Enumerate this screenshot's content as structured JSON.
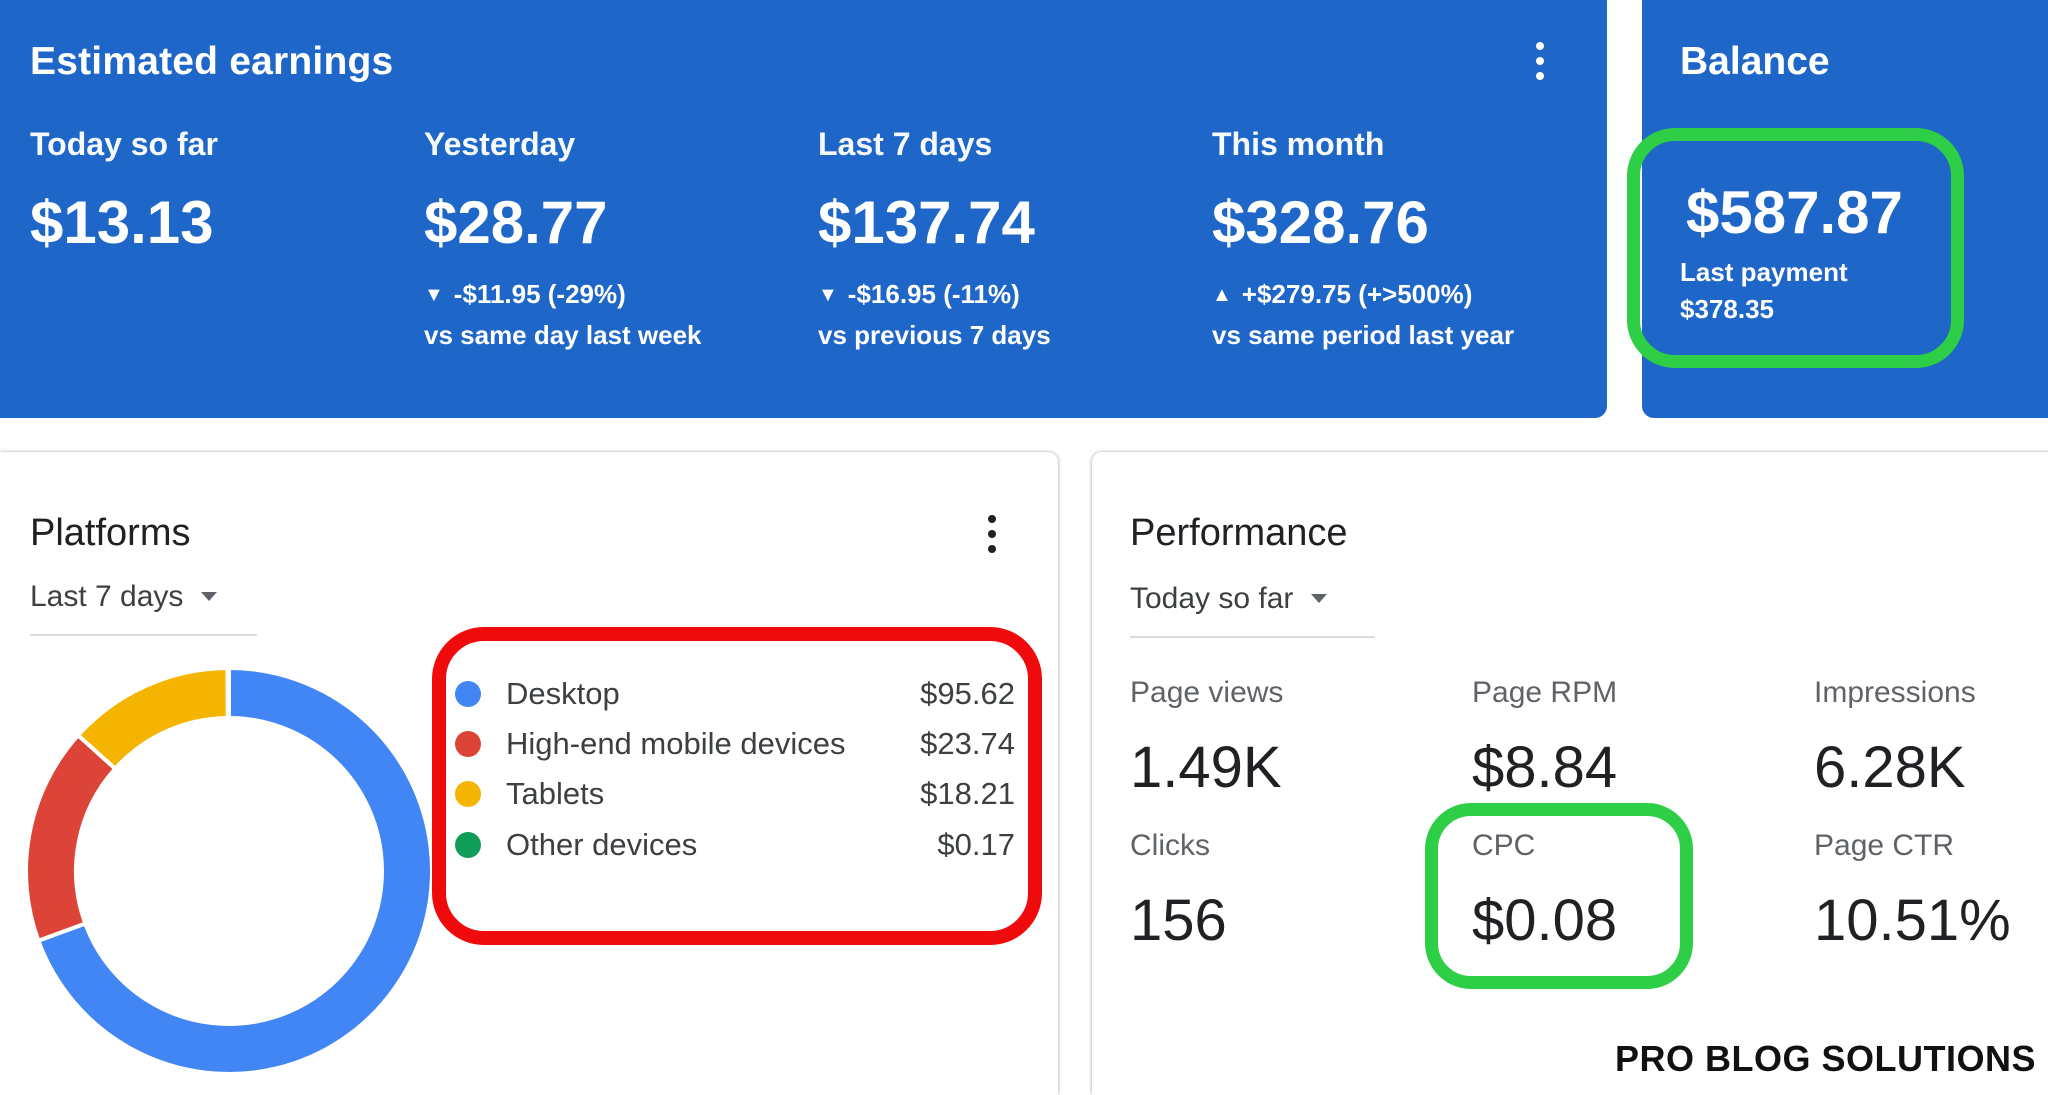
{
  "earnings": {
    "title": "Estimated earnings",
    "metrics": [
      {
        "label": "Today so far",
        "value": "$13.13",
        "change": "",
        "compare": ""
      },
      {
        "label": "Yesterday",
        "value": "$28.77",
        "change": "-$11.95 (-29%)",
        "direction": "down",
        "compare": "vs same day last week"
      },
      {
        "label": "Last 7 days",
        "value": "$137.74",
        "change": "-$16.95 (-11%)",
        "direction": "down",
        "compare": "vs previous 7 days"
      },
      {
        "label": "This month",
        "value": "$328.76",
        "change": "+$279.75 (+>500%)",
        "direction": "up",
        "compare": "vs same period last year"
      }
    ],
    "arrow_down": "▼",
    "arrow_up": "▲"
  },
  "balance": {
    "title": "Balance",
    "value": "$587.87",
    "last_payment_label": "Last payment",
    "last_payment_value": "$378.35"
  },
  "platforms": {
    "title": "Platforms",
    "range": "Last 7 days",
    "items": [
      {
        "label": "Desktop",
        "value": "$95.62",
        "color": "#4285f4"
      },
      {
        "label": "High-end mobile devices",
        "value": "$23.74",
        "color": "#db4437"
      },
      {
        "label": "Tablets",
        "value": "$18.21",
        "color": "#f4b400"
      },
      {
        "label": "Other devices",
        "value": "$0.17",
        "color": "#0f9d58"
      }
    ]
  },
  "performance": {
    "title": "Performance",
    "range": "Today so far",
    "metrics": [
      {
        "label": "Page views",
        "value": "1.49K"
      },
      {
        "label": "Page RPM",
        "value": "$8.84"
      },
      {
        "label": "Impressions",
        "value": "6.28K"
      },
      {
        "label": "Clicks",
        "value": "156"
      },
      {
        "label": "CPC",
        "value": "$0.08"
      },
      {
        "label": "Page CTR",
        "value": "10.51%"
      }
    ]
  },
  "watermark": "PRO BLOG SOLUTIONS",
  "colors": {
    "brand_blue": "#1e66c7",
    "highlight_green": "#2fce47",
    "highlight_red": "#ef0b0b"
  }
}
